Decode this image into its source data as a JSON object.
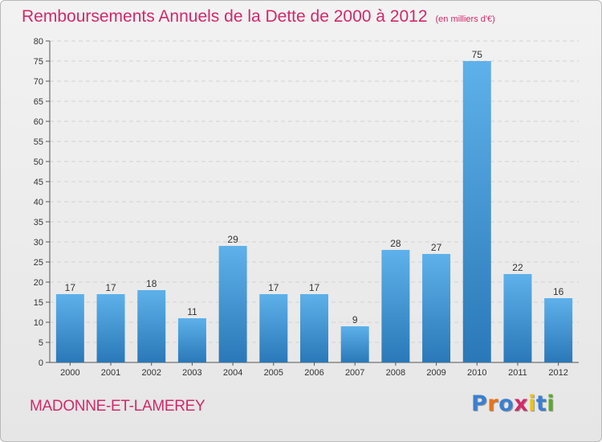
{
  "title": "Remboursements Annuels de la Dette de 2000 à 2012",
  "subtitle": "(en milliers d'€)",
  "commune": "MADONNE-ET-LAMEREY",
  "logo": {
    "letters": [
      "P",
      "r",
      "o",
      "x",
      "i",
      "t",
      "i"
    ],
    "colors": [
      "#3a7fd0",
      "#e8731b",
      "#3a7fd0",
      "#d3286a",
      "#e8c21b",
      "#3a7fd0",
      "#5aaa2a"
    ]
  },
  "colors": {
    "bar_light": "#5eb1ea",
    "bar_dark": "#2a78b8",
    "accent": "#d3286a"
  },
  "chart_data": {
    "type": "bar",
    "categories": [
      "2000",
      "2001",
      "2002",
      "2003",
      "2004",
      "2005",
      "2006",
      "2007",
      "2008",
      "2009",
      "2010",
      "2011",
      "2012"
    ],
    "values": [
      17,
      17,
      18,
      11,
      29,
      17,
      17,
      9,
      28,
      27,
      75,
      22,
      16
    ],
    "data_labels": [
      "17",
      "17",
      "18",
      "11",
      "29",
      "17",
      "17",
      "9",
      "28",
      "27",
      "75",
      "22",
      "16"
    ],
    "yticks": [
      0,
      5,
      10,
      15,
      20,
      25,
      30,
      35,
      40,
      45,
      50,
      55,
      60,
      65,
      70,
      75,
      80
    ],
    "ylim": [
      0,
      80
    ],
    "grid": true
  }
}
